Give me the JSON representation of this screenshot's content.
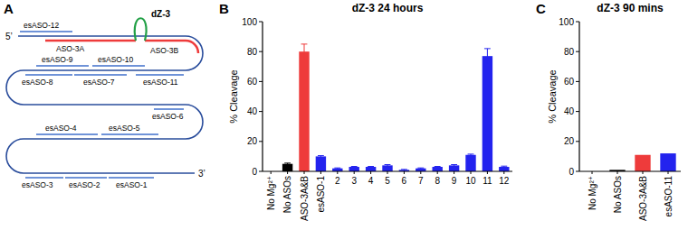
{
  "panel_labels": [
    "A",
    "B",
    "C"
  ],
  "diagram": {
    "five_prime": "5’",
    "three_prime": "3’",
    "enzyme": "dZ-3",
    "targeting_asos": [
      "ASO-3A",
      "ASO-3B"
    ],
    "esasos": [
      "esASO-1",
      "esASO-2",
      "esASO-3",
      "esASO-4",
      "esASO-5",
      "esASO-6",
      "esASO-7",
      "esASO-8",
      "esASO-9",
      "esASO-10",
      "esASO-11",
      "esASO-12"
    ]
  },
  "chart_data": [
    {
      "type": "bar",
      "title": "dZ-3 24 hours",
      "y_label": "% Cleavage",
      "categories": [
        "No Mg²⁺",
        "No ASOs",
        "ASO-3A&B",
        "esASO-1",
        "2",
        "3",
        "4",
        "5",
        "6",
        "7",
        "8",
        "9",
        "10",
        "11",
        "12"
      ],
      "values": [
        0,
        5,
        80,
        10,
        2,
        3,
        3,
        4,
        1,
        2,
        3,
        4,
        11,
        77,
        3
      ],
      "errors": [
        0,
        0.5,
        5,
        0.5,
        0.3,
        0.3,
        0.3,
        0.5,
        0.3,
        0.3,
        0.3,
        0.5,
        0.5,
        5,
        0.5
      ],
      "colors": [
        "#000000",
        "#000000",
        "#ee3b3b",
        "#2323ee",
        "#2323ee",
        "#2323ee",
        "#2323ee",
        "#2323ee",
        "#2323ee",
        "#2323ee",
        "#2323ee",
        "#2323ee",
        "#2323ee",
        "#2323ee",
        "#2323ee"
      ],
      "ylim": [
        0,
        100
      ],
      "yticks": [
        0,
        20,
        40,
        60,
        80,
        100
      ],
      "grid": false
    },
    {
      "type": "bar",
      "title": "dZ-3 90 mins",
      "y_label": "% Cleavage",
      "categories": [
        "No Mg²⁺",
        "No ASOs",
        "ASO-3A&B",
        "esASO-11"
      ],
      "values": [
        0,
        1,
        11,
        12
      ],
      "colors": [
        "#000000",
        "#000000",
        "#ee3b3b",
        "#2323ee"
      ],
      "ylim": [
        0,
        100
      ],
      "yticks": [
        0,
        20,
        40,
        60,
        80,
        100
      ],
      "grid": false
    }
  ]
}
